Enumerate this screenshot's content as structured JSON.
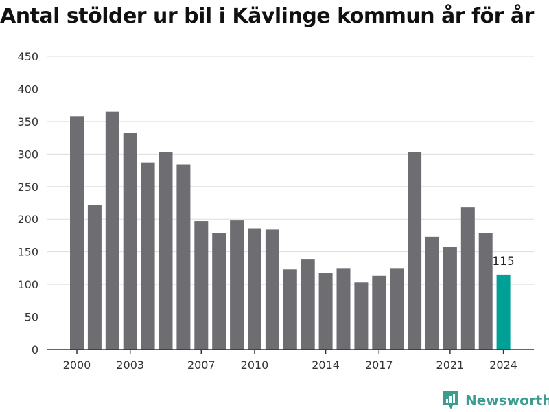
{
  "title": "Antal stölder ur bil i Kävlinge kommun år för år",
  "brand": "Newsworthy",
  "colors": {
    "bar": "#6e6d72",
    "highlight": "#00a096",
    "grid": "#dddddd",
    "axis": "#333333",
    "brand": "#3c9c8f"
  },
  "chart_data": {
    "type": "bar",
    "title": "Antal stölder ur bil i Kävlinge kommun år för år",
    "xlabel": "",
    "ylabel": "",
    "ylim": [
      0,
      450
    ],
    "yticks": [
      0,
      50,
      100,
      150,
      200,
      250,
      300,
      350,
      400,
      450
    ],
    "grid": true,
    "categories": [
      "2000",
      "2001",
      "2002",
      "2003",
      "2004",
      "2005",
      "2006",
      "2007",
      "2008",
      "2009",
      "2010",
      "2011",
      "2012",
      "2013",
      "2014",
      "2015",
      "2016",
      "2017",
      "2018",
      "2019",
      "2020",
      "2021",
      "2022",
      "2023",
      "2024"
    ],
    "values": [
      358,
      222,
      365,
      333,
      287,
      303,
      284,
      197,
      179,
      198,
      186,
      184,
      123,
      139,
      118,
      124,
      103,
      113,
      124,
      303,
      173,
      157,
      218,
      179,
      115
    ],
    "xtick_labels": [
      "2000",
      "2003",
      "2007",
      "2010",
      "2014",
      "2017",
      "2021",
      "2024"
    ],
    "highlight_index": 24,
    "data_labels": [
      {
        "category": "2024",
        "text": "115"
      }
    ]
  }
}
